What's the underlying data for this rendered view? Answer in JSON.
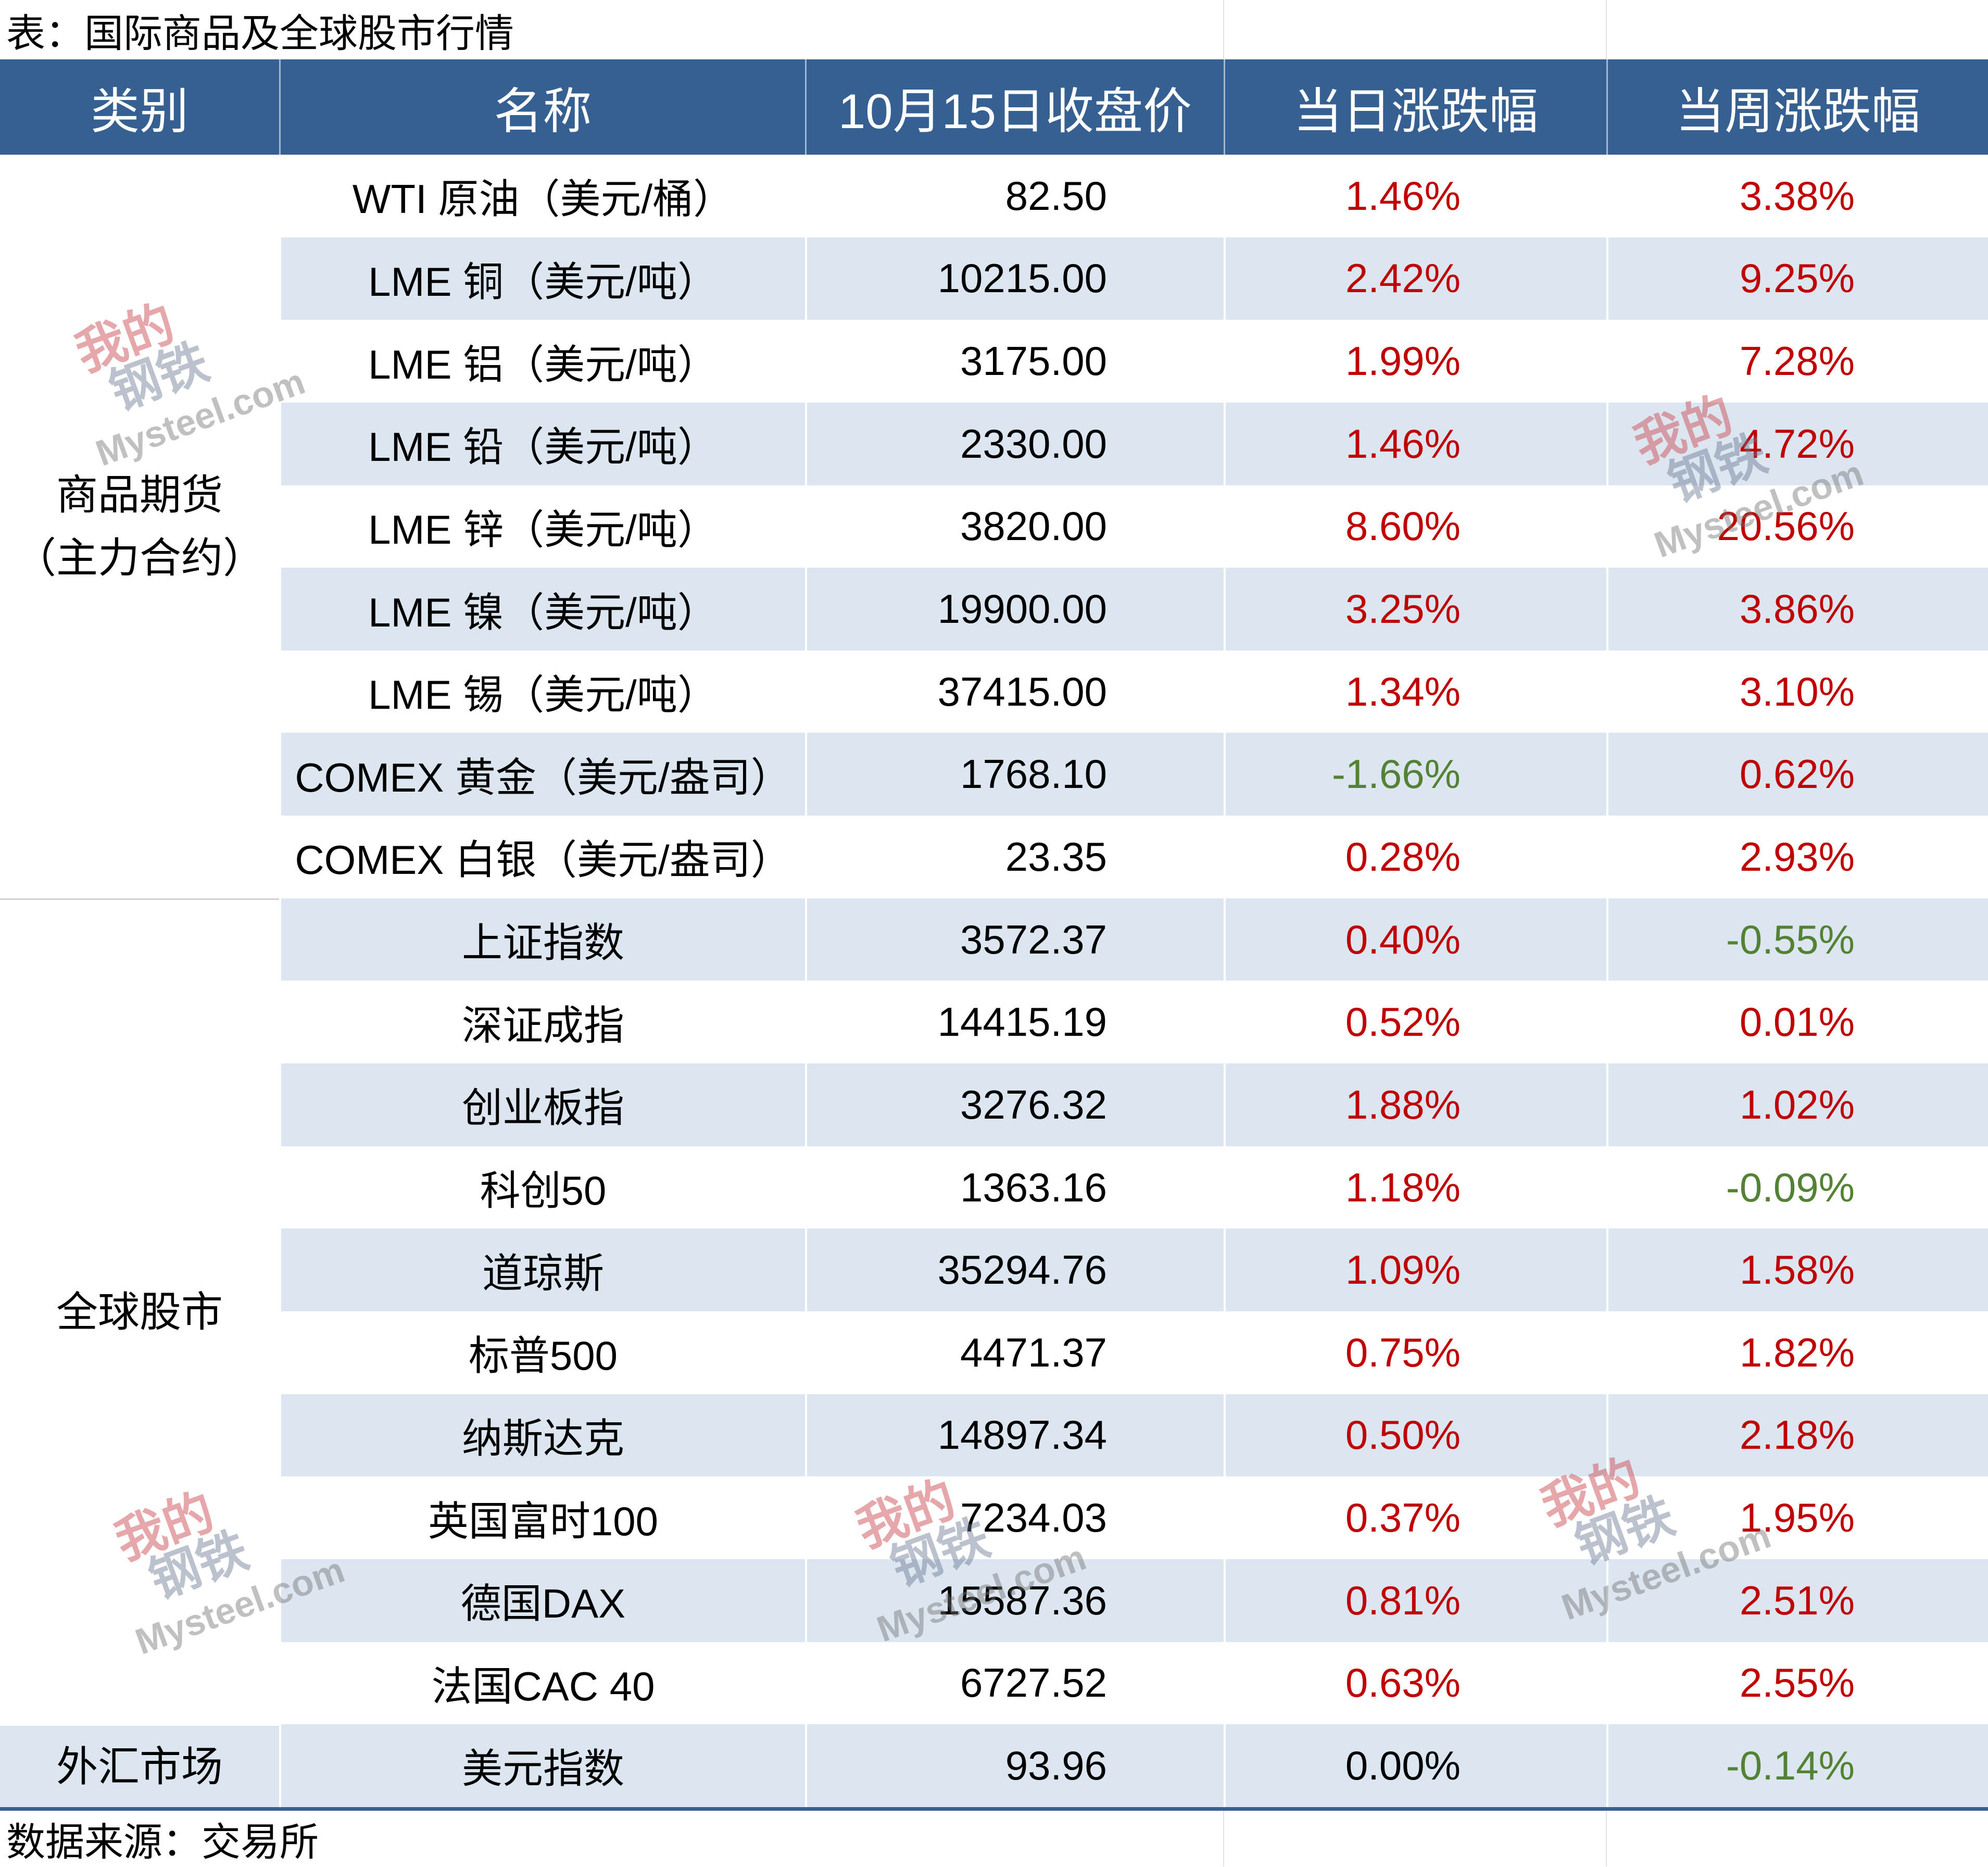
{
  "chart_data": {
    "type": "table",
    "title": "表：国际商品及全球股市行情",
    "columns": {
      "category": "类别",
      "name": "名称",
      "close": "10月15日收盘价",
      "daily_change": "当日涨跌幅",
      "weekly_change": "当周涨跌幅"
    },
    "groups": [
      {
        "category": [
          "商品期货",
          "（主力合约）"
        ],
        "rows": [
          {
            "name": "WTI 原油（美元/桶）",
            "close": "82.50",
            "daily_change": "1.46%",
            "weekly_change": "3.38%"
          },
          {
            "name": "LME 铜（美元/吨）",
            "close": "10215.00",
            "daily_change": "2.42%",
            "weekly_change": "9.25%"
          },
          {
            "name": "LME 铝（美元/吨）",
            "close": "3175.00",
            "daily_change": "1.99%",
            "weekly_change": "7.28%"
          },
          {
            "name": "LME 铅（美元/吨）",
            "close": "2330.00",
            "daily_change": "1.46%",
            "weekly_change": "4.72%"
          },
          {
            "name": "LME 锌（美元/吨）",
            "close": "3820.00",
            "daily_change": "8.60%",
            "weekly_change": "20.56%"
          },
          {
            "name": "LME 镍（美元/吨）",
            "close": "19900.00",
            "daily_change": "3.25%",
            "weekly_change": "3.86%"
          },
          {
            "name": "LME 锡（美元/吨）",
            "close": "37415.00",
            "daily_change": "1.34%",
            "weekly_change": "3.10%"
          },
          {
            "name": "COMEX 黄金（美元/盎司）",
            "close": "1768.10",
            "daily_change": "-1.66%",
            "weekly_change": "0.62%"
          },
          {
            "name": "COMEX 白银（美元/盎司）",
            "close": "23.35",
            "daily_change": "0.28%",
            "weekly_change": "2.93%"
          }
        ]
      },
      {
        "category": [
          "全球股市"
        ],
        "rows": [
          {
            "name": "上证指数",
            "close": "3572.37",
            "daily_change": "0.40%",
            "weekly_change": "-0.55%"
          },
          {
            "name": "深证成指",
            "close": "14415.19",
            "daily_change": "0.52%",
            "weekly_change": "0.01%"
          },
          {
            "name": "创业板指",
            "close": "3276.32",
            "daily_change": "1.88%",
            "weekly_change": "1.02%"
          },
          {
            "name": "科创50",
            "close": "1363.16",
            "daily_change": "1.18%",
            "weekly_change": "-0.09%"
          },
          {
            "name": "道琼斯",
            "close": "35294.76",
            "daily_change": "1.09%",
            "weekly_change": "1.58%"
          },
          {
            "name": "标普500",
            "close": "4471.37",
            "daily_change": "0.75%",
            "weekly_change": "1.82%"
          },
          {
            "name": "纳斯达克",
            "close": "14897.34",
            "daily_change": "0.50%",
            "weekly_change": "2.18%"
          },
          {
            "name": "英国富时100",
            "close": "7234.03",
            "daily_change": "0.37%",
            "weekly_change": "1.95%"
          },
          {
            "name": "德国DAX",
            "close": "15587.36",
            "daily_change": "0.81%",
            "weekly_change": "2.51%"
          },
          {
            "name": "法国CAC 40",
            "close": "6727.52",
            "daily_change": "0.63%",
            "weekly_change": "2.55%"
          }
        ]
      },
      {
        "category": [
          "外汇市场"
        ],
        "rows": [
          {
            "name": "美元指数",
            "close": "93.96",
            "daily_change": "0.00%",
            "weekly_change": "-0.14%"
          }
        ]
      }
    ],
    "source": "数据来源：交易所"
  },
  "watermark": {
    "line1": "我的",
    "line2": "钢铁",
    "site": "Mysteel.com"
  },
  "colors": {
    "header_bg": "#366092",
    "header_text": "#ffffff",
    "stripe": "#dce6f1",
    "up": "#c00000",
    "down": "#548235",
    "flat": "#000000"
  }
}
